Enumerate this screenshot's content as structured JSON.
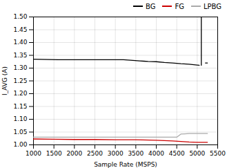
{
  "chart_data": {
    "type": "line",
    "xlabel": "Sample Rate (MSPS)",
    "ylabel": "I_AVG (A)",
    "xlim": [
      1000,
      5500
    ],
    "ylim": [
      1.0,
      1.5
    ],
    "xticks": [
      1000,
      1500,
      2000,
      2500,
      3000,
      3500,
      4000,
      4500,
      5000,
      5500
    ],
    "yticks": [
      {
        "value": 1.0,
        "label": "1.00"
      },
      1.05,
      {
        "value": 1.1,
        "label": "1.10"
      },
      1.15,
      {
        "value": 1.2,
        "label": "1.20"
      },
      1.25,
      {
        "value": 1.3,
        "label": "1.30"
      },
      1.35,
      {
        "value": 1.4,
        "label": "1.40"
      },
      1.45,
      {
        "value": 1.5,
        "label": "1.50"
      }
    ],
    "grid": true,
    "legend": "upper right",
    "series": [
      {
        "name": "BG",
        "color": "#000000",
        "x": [
          1000,
          1200,
          1600,
          2000,
          2400,
          2800,
          3200,
          3600,
          3700,
          3800,
          4000,
          4200,
          4400,
          4600,
          4800,
          5000,
          5050,
          5100,
          5100,
          5100,
          5200,
          5200,
          5250
        ],
        "values": [
          1.335,
          1.334,
          1.333,
          1.333,
          1.333,
          1.333,
          1.333,
          1.328,
          1.327,
          1.326,
          1.325,
          1.322,
          1.32,
          1.317,
          1.315,
          1.312,
          1.311,
          null,
          1.311,
          1.5,
          null,
          1.32,
          1.32
        ]
      },
      {
        "name": "FG",
        "color": "#cc0000",
        "x": [
          1000,
          1500,
          2000,
          2500,
          3000,
          3500,
          4000,
          4400,
          4600,
          4800,
          5000,
          5100,
          5200,
          5250
        ],
        "values": [
          1.023,
          1.022,
          1.021,
          1.021,
          1.02,
          1.02,
          1.018,
          1.015,
          1.013,
          1.011,
          1.01,
          1.01,
          1.01,
          1.01
        ]
      },
      {
        "name": "LPBG",
        "color": "#aaaaaa",
        "x": [
          1000,
          2000,
          3000,
          3500,
          4000,
          4400,
          4500,
          4600,
          4700,
          4800,
          5000,
          5100,
          5200,
          5250
        ],
        "values": [
          1.03,
          1.03,
          1.03,
          1.03,
          1.03,
          1.03,
          1.03,
          1.042,
          1.043,
          1.044,
          1.044,
          1.044,
          1.044,
          1.044
        ]
      }
    ]
  }
}
